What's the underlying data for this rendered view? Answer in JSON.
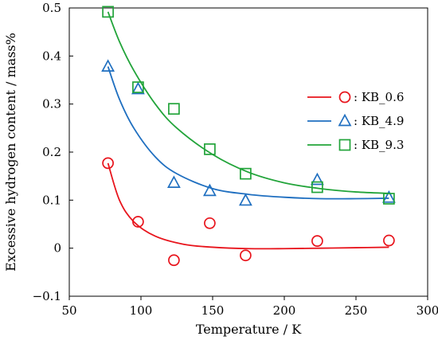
{
  "chart_data": {
    "type": "scatter",
    "xlabel": "Temperature / K",
    "ylabel": "Excessive hydrogen content / mass%",
    "xlim": [
      50,
      300
    ],
    "ylim": [
      -0.1,
      0.5
    ],
    "xticks": [
      50,
      100,
      150,
      200,
      250,
      300
    ],
    "yticks": [
      -0.1,
      0,
      0.1,
      0.2,
      0.3,
      0.4,
      0.5
    ],
    "xtick_labels": [
      "50",
      "100",
      "150",
      "200",
      "250",
      "300"
    ],
    "ytick_labels": [
      "−0.1",
      "0",
      "0.1",
      "0.2",
      "0.3",
      "0.4",
      "0.5"
    ],
    "grid": false,
    "legend_position": "right",
    "series": [
      {
        "name": ": KB_0.6",
        "marker": "circle",
        "color": "#e8141c",
        "points": [
          [
            77,
            0.177
          ],
          [
            98,
            0.055
          ],
          [
            123,
            -0.025
          ],
          [
            148,
            0.052
          ],
          [
            173,
            -0.015
          ],
          [
            223,
            0.015
          ],
          [
            273,
            0.016
          ]
        ],
        "fit": [
          [
            77,
            0.177
          ],
          [
            85,
            0.1
          ],
          [
            95,
            0.055
          ],
          [
            110,
            0.025
          ],
          [
            130,
            0.008
          ],
          [
            150,
            0.002
          ],
          [
            175,
            -0.001
          ],
          [
            200,
            -0.001
          ],
          [
            225,
            0.0
          ],
          [
            250,
            0.001
          ],
          [
            273,
            0.002
          ]
        ]
      },
      {
        "name": ": KB_4.9",
        "marker": "triangle",
        "color": "#1f6fc0",
        "points": [
          [
            77,
            0.378
          ],
          [
            98,
            0.331
          ],
          [
            123,
            0.136
          ],
          [
            148,
            0.119
          ],
          [
            173,
            0.099
          ],
          [
            223,
            0.142
          ],
          [
            273,
            0.105
          ]
        ],
        "fit": [
          [
            77,
            0.378
          ],
          [
            85,
            0.31
          ],
          [
            95,
            0.25
          ],
          [
            110,
            0.19
          ],
          [
            125,
            0.155
          ],
          [
            150,
            0.124
          ],
          [
            175,
            0.112
          ],
          [
            200,
            0.106
          ],
          [
            225,
            0.103
          ],
          [
            250,
            0.103
          ],
          [
            273,
            0.104
          ]
        ]
      },
      {
        "name": ": KB_9.3",
        "marker": "square",
        "color": "#22a43a",
        "points": [
          [
            77,
            0.492
          ],
          [
            98,
            0.335
          ],
          [
            123,
            0.29
          ],
          [
            148,
            0.206
          ],
          [
            173,
            0.155
          ],
          [
            223,
            0.127
          ],
          [
            273,
            0.103
          ]
        ],
        "fit": [
          [
            77,
            0.492
          ],
          [
            85,
            0.43
          ],
          [
            95,
            0.37
          ],
          [
            110,
            0.3
          ],
          [
            125,
            0.25
          ],
          [
            150,
            0.195
          ],
          [
            175,
            0.158
          ],
          [
            200,
            0.136
          ],
          [
            225,
            0.124
          ],
          [
            250,
            0.117
          ],
          [
            273,
            0.114
          ]
        ]
      }
    ]
  }
}
